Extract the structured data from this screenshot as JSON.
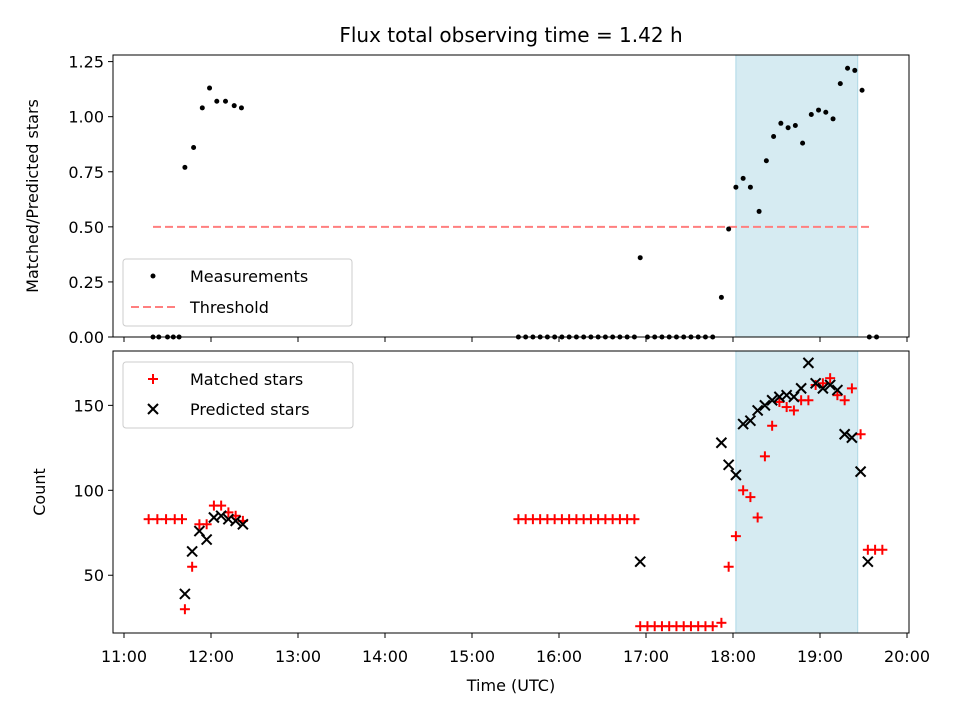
{
  "colors": {
    "measurement": "#000000",
    "threshold": "#ff7f7f",
    "matched": "#ff0000",
    "predicted": "#000000",
    "highlight": "#add8e6"
  },
  "chart_data": [
    {
      "type": "scatter",
      "title": "Flux total observing time = 1.42 h",
      "xlabel": "",
      "ylabel": "Matched/Predicted stars",
      "xlim": [
        "11:00",
        "20:00"
      ],
      "ylim": [
        0,
        1.28
      ],
      "yticks": [
        "0.00",
        "0.25",
        "0.50",
        "0.75",
        "1.00",
        "1.25"
      ],
      "highlight_span": [
        "18:02",
        "19:26"
      ],
      "grid": false,
      "legend_position": "lower-left",
      "legend": [
        "Measurements",
        "Threshold"
      ],
      "threshold": {
        "name": "Threshold",
        "value": 0.5,
        "x_range": [
          "11:20",
          "19:36"
        ]
      },
      "series": [
        {
          "name": "Measurements",
          "points": [
            [
              "11:20",
              0.0
            ],
            [
              "11:24",
              0.0
            ],
            [
              "11:30",
              0.0
            ],
            [
              "11:34",
              0.0
            ],
            [
              "11:38",
              0.0
            ],
            [
              "11:42",
              0.77
            ],
            [
              "11:48",
              0.86
            ],
            [
              "11:54",
              1.04
            ],
            [
              "11:59",
              1.13
            ],
            [
              "12:04",
              1.07
            ],
            [
              "12:10",
              1.07
            ],
            [
              "12:16",
              1.05
            ],
            [
              "12:21",
              1.04
            ],
            [
              "15:32",
              0.0
            ],
            [
              "15:37",
              0.0
            ],
            [
              "15:42",
              0.0
            ],
            [
              "15:47",
              0.0
            ],
            [
              "15:52",
              0.0
            ],
            [
              "15:57",
              0.0
            ],
            [
              "16:02",
              0.0
            ],
            [
              "16:07",
              0.0
            ],
            [
              "16:12",
              0.0
            ],
            [
              "16:17",
              0.0
            ],
            [
              "16:22",
              0.0
            ],
            [
              "16:27",
              0.0
            ],
            [
              "16:32",
              0.0
            ],
            [
              "16:37",
              0.0
            ],
            [
              "16:42",
              0.0
            ],
            [
              "16:47",
              0.0
            ],
            [
              "16:52",
              0.0
            ],
            [
              "16:56",
              0.36
            ],
            [
              "17:01",
              0.0
            ],
            [
              "17:06",
              0.0
            ],
            [
              "17:11",
              0.0
            ],
            [
              "17:16",
              0.0
            ],
            [
              "17:21",
              0.0
            ],
            [
              "17:26",
              0.0
            ],
            [
              "17:31",
              0.0
            ],
            [
              "17:36",
              0.0
            ],
            [
              "17:41",
              0.0
            ],
            [
              "17:46",
              0.0
            ],
            [
              "17:52",
              0.18
            ],
            [
              "17:57",
              0.49
            ],
            [
              "18:02",
              0.68
            ],
            [
              "18:07",
              0.72
            ],
            [
              "18:12",
              0.68
            ],
            [
              "18:18",
              0.57
            ],
            [
              "18:23",
              0.8
            ],
            [
              "18:28",
              0.91
            ],
            [
              "18:33",
              0.97
            ],
            [
              "18:38",
              0.95
            ],
            [
              "18:43",
              0.96
            ],
            [
              "18:48",
              0.88
            ],
            [
              "18:54",
              1.01
            ],
            [
              "18:59",
              1.03
            ],
            [
              "19:04",
              1.02
            ],
            [
              "19:09",
              0.99
            ],
            [
              "19:14",
              1.15
            ],
            [
              "19:19",
              1.22
            ],
            [
              "19:24",
              1.21
            ],
            [
              "19:29",
              1.12
            ],
            [
              "19:34",
              0.0
            ],
            [
              "19:39",
              0.0
            ]
          ]
        }
      ]
    },
    {
      "type": "scatter",
      "title": "",
      "xlabel": "Time (UTC)",
      "ylabel": "Count",
      "xlim": [
        "11:00",
        "20:00"
      ],
      "ylim": [
        16,
        182
      ],
      "yticks": [
        "50",
        "100",
        "150"
      ],
      "xticks": [
        "11:00",
        "12:00",
        "13:00",
        "14:00",
        "15:00",
        "16:00",
        "17:00",
        "18:00",
        "19:00",
        "20:00"
      ],
      "highlight_span": [
        "18:02",
        "19:26"
      ],
      "grid": false,
      "legend_position": "upper-left",
      "legend": [
        "Matched stars",
        "Predicted stars"
      ],
      "series": [
        {
          "name": "Matched stars",
          "points": [
            [
              "11:17",
              83
            ],
            [
              "11:23",
              83
            ],
            [
              "11:29",
              83
            ],
            [
              "11:35",
              83
            ],
            [
              "11:40",
              83
            ],
            [
              "11:42",
              30
            ],
            [
              "11:47",
              55
            ],
            [
              "11:52",
              80
            ],
            [
              "11:57",
              80
            ],
            [
              "12:02",
              91
            ],
            [
              "12:07",
              91
            ],
            [
              "12:12",
              87
            ],
            [
              "12:17",
              85
            ],
            [
              "12:22",
              82
            ],
            [
              "15:32",
              83
            ],
            [
              "15:37",
              83
            ],
            [
              "15:42",
              83
            ],
            [
              "15:47",
              83
            ],
            [
              "15:52",
              83
            ],
            [
              "15:57",
              83
            ],
            [
              "16:02",
              83
            ],
            [
              "16:07",
              83
            ],
            [
              "16:12",
              83
            ],
            [
              "16:17",
              83
            ],
            [
              "16:22",
              83
            ],
            [
              "16:27",
              83
            ],
            [
              "16:32",
              83
            ],
            [
              "16:37",
              83
            ],
            [
              "16:42",
              83
            ],
            [
              "16:47",
              83
            ],
            [
              "16:52",
              83
            ],
            [
              "16:56",
              20
            ],
            [
              "17:01",
              20
            ],
            [
              "17:06",
              20
            ],
            [
              "17:11",
              20
            ],
            [
              "17:16",
              20
            ],
            [
              "17:21",
              20
            ],
            [
              "17:26",
              20
            ],
            [
              "17:31",
              20
            ],
            [
              "17:36",
              20
            ],
            [
              "17:41",
              20
            ],
            [
              "17:46",
              20
            ],
            [
              "17:52",
              22
            ],
            [
              "17:57",
              55
            ],
            [
              "18:02",
              73
            ],
            [
              "18:07",
              100
            ],
            [
              "18:12",
              96
            ],
            [
              "18:17",
              84
            ],
            [
              "18:22",
              120
            ],
            [
              "18:27",
              138
            ],
            [
              "18:32",
              152
            ],
            [
              "18:37",
              149
            ],
            [
              "18:42",
              147
            ],
            [
              "18:47",
              153
            ],
            [
              "18:52",
              153
            ],
            [
              "18:57",
              162
            ],
            [
              "19:02",
              163
            ],
            [
              "19:07",
              166
            ],
            [
              "19:12",
              156
            ],
            [
              "19:17",
              153
            ],
            [
              "19:22",
              160
            ],
            [
              "19:28",
              133
            ],
            [
              "19:33",
              65
            ],
            [
              "19:38",
              65
            ],
            [
              "19:43",
              65
            ]
          ]
        },
        {
          "name": "Predicted stars",
          "points": [
            [
              "11:42",
              39
            ],
            [
              "11:47",
              64
            ],
            [
              "11:52",
              76
            ],
            [
              "11:57",
              71
            ],
            [
              "12:02",
              84
            ],
            [
              "12:07",
              85
            ],
            [
              "12:12",
              83
            ],
            [
              "12:17",
              82
            ],
            [
              "12:22",
              80
            ],
            [
              "16:56",
              58
            ],
            [
              "17:52",
              128
            ],
            [
              "17:57",
              115
            ],
            [
              "18:02",
              109
            ],
            [
              "18:07",
              139
            ],
            [
              "18:12",
              141
            ],
            [
              "18:17",
              147
            ],
            [
              "18:22",
              150
            ],
            [
              "18:27",
              153
            ],
            [
              "18:32",
              155
            ],
            [
              "18:37",
              156
            ],
            [
              "18:42",
              155
            ],
            [
              "18:47",
              160
            ],
            [
              "18:52",
              175
            ],
            [
              "18:57",
              163
            ],
            [
              "19:02",
              160
            ],
            [
              "19:07",
              162
            ],
            [
              "19:12",
              159
            ],
            [
              "19:17",
              133
            ],
            [
              "19:22",
              131
            ],
            [
              "19:28",
              111
            ],
            [
              "19:33",
              58
            ]
          ]
        }
      ]
    }
  ]
}
